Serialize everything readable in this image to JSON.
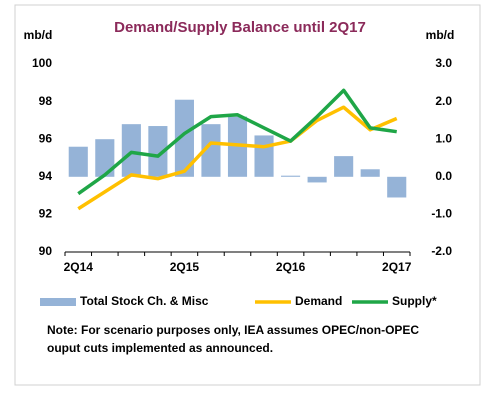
{
  "chart_data": {
    "type": "bar-line",
    "title": "Demand/Supply Balance until 2Q17",
    "y_label": "mb/d",
    "y2_label": "mb/d",
    "categories": [
      "2Q14",
      null,
      null,
      null,
      "2Q15",
      null,
      null,
      null,
      "2Q16",
      null,
      null,
      null,
      "2Q17"
    ],
    "ylim": [
      90,
      100
    ],
    "yticks": [
      90,
      92,
      94,
      96,
      98,
      100
    ],
    "y2lim": [
      -2,
      3
    ],
    "y2ticks": [
      {
        "value": -2,
        "label": "-2.0"
      },
      {
        "value": -1,
        "label": "-1.0"
      },
      {
        "value": 0,
        "label": "0.0"
      },
      {
        "value": 1,
        "label": "1.0"
      },
      {
        "value": 2,
        "label": "2.0"
      },
      {
        "value": 3,
        "label": "3.0"
      }
    ],
    "series": [
      {
        "name": "Total Stock Ch. & Misc",
        "type": "bar",
        "axis": "y2",
        "color": "#95b3d7",
        "values": [
          0.8,
          1.0,
          1.4,
          1.35,
          2.05,
          1.4,
          1.6,
          1.1,
          0.03,
          -0.15,
          0.55,
          0.2,
          -0.55
        ]
      },
      {
        "name": "Demand",
        "type": "line",
        "color": "#ffc000",
        "values": [
          92.3,
          93.2,
          94.1,
          93.9,
          94.3,
          95.8,
          95.7,
          95.6,
          95.9,
          97.0,
          97.7,
          96.5,
          97.1
        ]
      },
      {
        "name": "Supply*",
        "type": "line",
        "color": "#1fa647",
        "values": [
          93.1,
          94.1,
          95.3,
          95.1,
          96.3,
          97.2,
          97.3,
          96.6,
          95.9,
          97.2,
          98.6,
          96.6,
          96.4
        ]
      }
    ],
    "note": [
      "Note: For scenario purposes only, IEA assumes OPEC/non-OPEC",
      "ouput cuts implemented as announced."
    ]
  }
}
